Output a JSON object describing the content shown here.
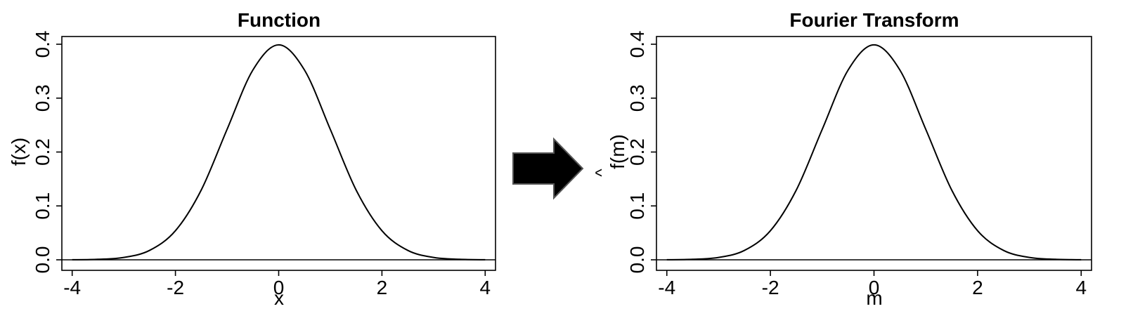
{
  "chart_data": [
    {
      "type": "line",
      "title": "Function",
      "xlabel": "x",
      "ylabel": "f(x)",
      "xlim": [
        -4.2,
        4.2
      ],
      "ylim": [
        0,
        0.4
      ],
      "xticks": [
        "-4",
        "-2",
        "0",
        "2",
        "4"
      ],
      "yticks": [
        "0.0",
        "0.1",
        "0.2",
        "0.3",
        "0.4"
      ],
      "grid": false,
      "baseline": 0,
      "series": [
        {
          "x": [
            -4,
            -3.5,
            -3,
            -2.5,
            -2,
            -1.5,
            -1,
            -0.5,
            0,
            0.5,
            1,
            1.5,
            2,
            2.5,
            3,
            3.5,
            4
          ],
          "y": [
            0.0001,
            0.0009,
            0.0044,
            0.0175,
            0.054,
            0.1295,
            0.242,
            0.3521,
            0.3989,
            0.3521,
            0.242,
            0.1295,
            0.054,
            0.0175,
            0.0044,
            0.0009,
            0.0001
          ]
        }
      ]
    },
    {
      "type": "line",
      "title": "Fourier Transform",
      "xlabel": "m",
      "ylabel": "f(m)",
      "ylabel_accent": "^",
      "xlim": [
        -4.2,
        4.2
      ],
      "ylim": [
        0,
        0.4
      ],
      "xticks": [
        "-4",
        "-2",
        "0",
        "2",
        "4"
      ],
      "yticks": [
        "0.0",
        "0.1",
        "0.2",
        "0.3",
        "0.4"
      ],
      "grid": false,
      "baseline": 0,
      "series": [
        {
          "x": [
            -4,
            -3.5,
            -3,
            -2.5,
            -2,
            -1.5,
            -1,
            -0.5,
            0,
            0.5,
            1,
            1.5,
            2,
            2.5,
            3,
            3.5,
            4
          ],
          "y": [
            0.0001,
            0.0009,
            0.0044,
            0.0175,
            0.054,
            0.1295,
            0.242,
            0.3521,
            0.3989,
            0.3521,
            0.242,
            0.1295,
            0.054,
            0.0175,
            0.0044,
            0.0009,
            0.0001
          ]
        }
      ]
    }
  ],
  "arrow": {
    "icon": "right-arrow-icon",
    "color": "#000000"
  }
}
